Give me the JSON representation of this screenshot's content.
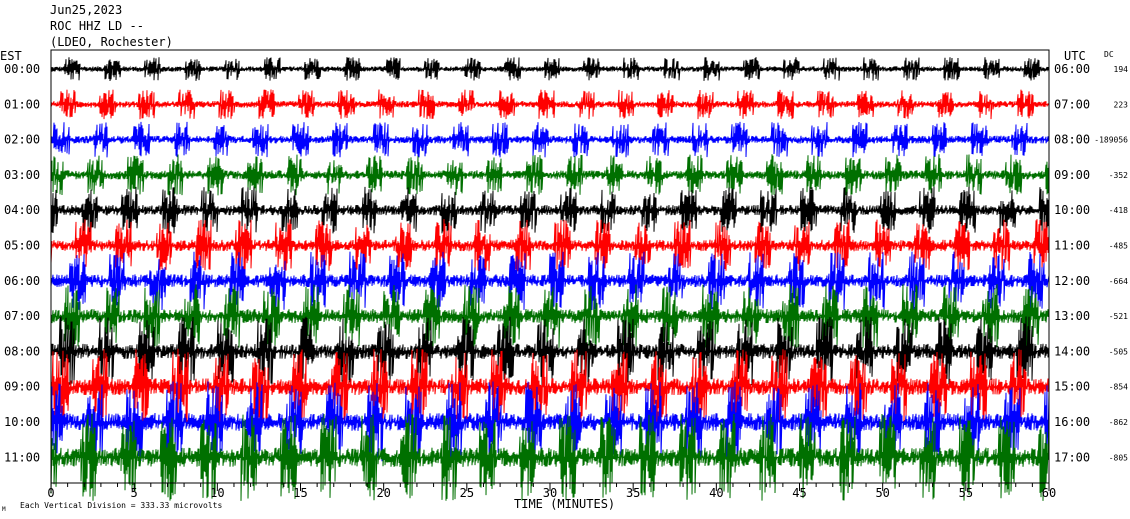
{
  "header": {
    "date": "Jun25,2023",
    "station": "ROC HHZ LD --",
    "network": "(LDEO, Rochester)"
  },
  "chart_data": {
    "type": "line",
    "title": "",
    "left_axis_label": "EST",
    "right_axis_label": "UTC",
    "dc_label": "DC",
    "xlabel": "TIME (MINUTES)",
    "xlim": [
      0,
      60
    ],
    "x_ticks": [
      0,
      5,
      10,
      15,
      20,
      25,
      30,
      35,
      40,
      45,
      50,
      55,
      60
    ],
    "trace_colors": [
      "#000000",
      "#ff0000",
      "#0000ff",
      "#007000"
    ],
    "rows": [
      {
        "est": "00:00",
        "utc": "06:00",
        "dc": "194"
      },
      {
        "est": "01:00",
        "utc": "07:00",
        "dc": "223"
      },
      {
        "est": "02:00",
        "utc": "08:00",
        "dc": "-189056"
      },
      {
        "est": "03:00",
        "utc": "09:00",
        "dc": "-352"
      },
      {
        "est": "04:00",
        "utc": "10:00",
        "dc": "-418"
      },
      {
        "est": "05:00",
        "utc": "11:00",
        "dc": "-485"
      },
      {
        "est": "06:00",
        "utc": "12:00",
        "dc": "-664"
      },
      {
        "est": "07:00",
        "utc": "13:00",
        "dc": "-521"
      },
      {
        "est": "08:00",
        "utc": "14:00",
        "dc": "-505"
      },
      {
        "est": "09:00",
        "utc": "15:00",
        "dc": "-854"
      },
      {
        "est": "10:00",
        "utc": "16:00",
        "dc": "-862"
      },
      {
        "est": "11:00",
        "utc": "17:00",
        "dc": "-805"
      }
    ],
    "footer": "Each Vertical Division = 333.33 microvolts",
    "footer_mark": "M"
  }
}
